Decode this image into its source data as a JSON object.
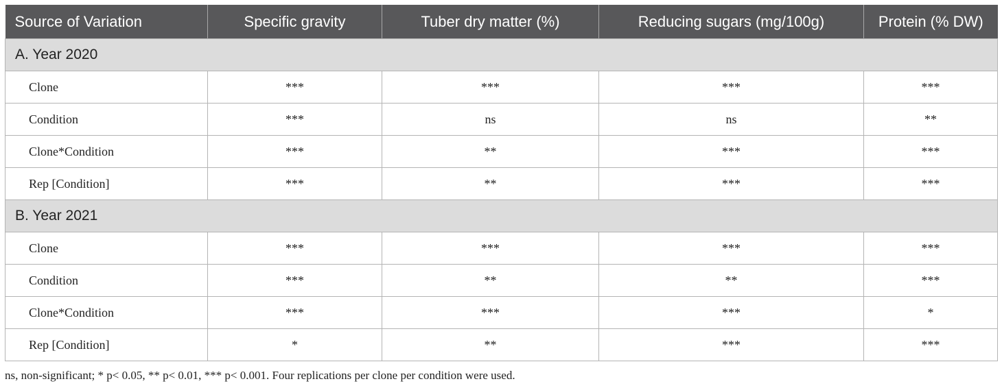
{
  "table": {
    "headers": [
      "Source of Variation",
      "Specific gravity",
      "Tuber dry matter (%)",
      "Reducing sugars (mg/100g)",
      "Protein (% DW)"
    ],
    "sections": [
      {
        "title": "A. Year 2020",
        "rows": [
          [
            "Clone",
            "***",
            "***",
            "***",
            "***"
          ],
          [
            "Condition",
            "***",
            "ns",
            "ns",
            "**"
          ],
          [
            "Clone*Condition",
            "***",
            "**",
            "***",
            "***"
          ],
          [
            "Rep [Condition]",
            "***",
            "**",
            "***",
            "***"
          ]
        ]
      },
      {
        "title": "B. Year 2021",
        "rows": [
          [
            "Clone",
            "***",
            "***",
            "***",
            "***"
          ],
          [
            "Condition",
            "***",
            "**",
            "**",
            "***"
          ],
          [
            "Clone*Condition",
            "***",
            "***",
            "***",
            "*"
          ],
          [
            "Rep [Condition]",
            "*",
            "**",
            "***",
            "***"
          ]
        ]
      }
    ]
  },
  "footnote": "ns, non-significant; * p< 0.05, ** p< 0.01, *** p< 0.001. Four replications per clone per condition were used."
}
